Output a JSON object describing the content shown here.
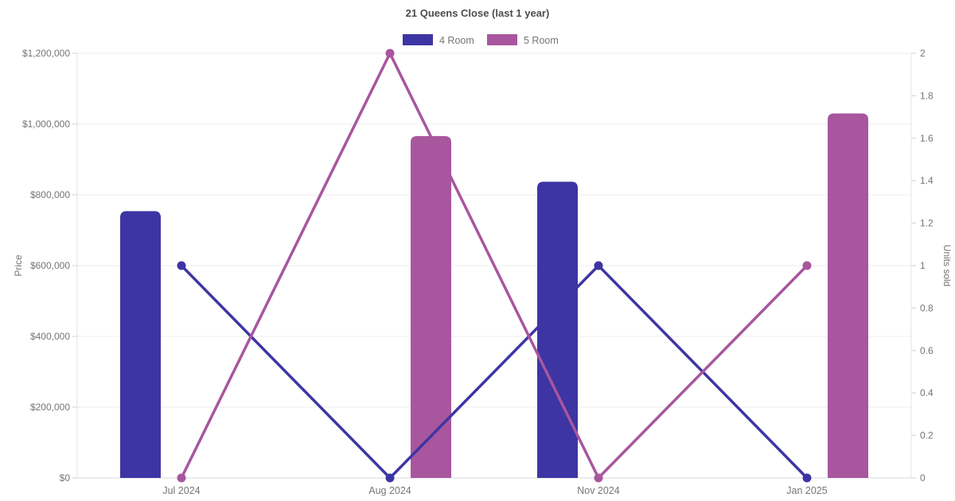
{
  "title": "21 Queens Close (last 1 year)",
  "legend": [
    {
      "label": "4 Room",
      "color": "#3d35a4"
    },
    {
      "label": "5 Room",
      "color": "#a8569e"
    }
  ],
  "chart_data": {
    "type": "combo-bar-line",
    "categories": [
      "Jul 2024",
      "Aug 2024",
      "Nov 2024",
      "Jan 2025"
    ],
    "bar_series": [
      {
        "name": "4 Room",
        "color": "#3d35a4",
        "axis": "left",
        "values": [
          754000,
          null,
          837000,
          null
        ]
      },
      {
        "name": "5 Room",
        "color": "#a8569e",
        "axis": "left",
        "values": [
          null,
          966000,
          null,
          1030000
        ]
      }
    ],
    "line_series": [
      {
        "name": "4 Room",
        "color": "#3d35a4",
        "axis": "right",
        "values": [
          1,
          0,
          1,
          0
        ]
      },
      {
        "name": "5 Room",
        "color": "#a8569e",
        "axis": "right",
        "values": [
          0,
          2,
          0,
          1
        ]
      }
    ],
    "left_axis": {
      "label": "Price",
      "min": 0,
      "max": 1200000,
      "step": 200000,
      "tick_labels": [
        "$0",
        "$200,000",
        "$400,000",
        "$600,000",
        "$800,000",
        "$1,000,000",
        "$1,200,000"
      ]
    },
    "right_axis": {
      "label": "Units sold",
      "min": 0,
      "max": 2,
      "step": 0.2,
      "tick_labels": [
        "0",
        "0.2",
        "0.4",
        "0.6",
        "0.8",
        "1",
        "1.2",
        "1.4",
        "1.6",
        "1.8",
        "2"
      ]
    },
    "grid": "horizontal",
    "legend_position": "top"
  },
  "colors": {
    "grid_line": "#ececec",
    "baseline": "#d9d9d9",
    "axis_border": "#e3e3e3",
    "tick_mark": "#cfcfcf",
    "tick_text": "#757575"
  }
}
